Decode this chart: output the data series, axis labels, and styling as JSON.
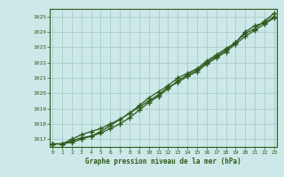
{
  "x": [
    0,
    1,
    2,
    3,
    4,
    5,
    6,
    7,
    8,
    9,
    10,
    11,
    12,
    13,
    14,
    15,
    16,
    17,
    18,
    19,
    20,
    21,
    22,
    23
  ],
  "line1": [
    1016.7,
    1016.7,
    1016.9,
    1017.1,
    1017.2,
    1017.4,
    1017.7,
    1018.0,
    1018.4,
    1018.9,
    1019.4,
    1019.8,
    1020.3,
    1020.8,
    1021.2,
    1021.5,
    1022.0,
    1022.4,
    1022.8,
    1023.3,
    1023.9,
    1024.2,
    1024.7,
    1025.2
  ],
  "line2": [
    1016.7,
    1016.7,
    1016.8,
    1017.0,
    1017.2,
    1017.5,
    1017.9,
    1018.3,
    1018.7,
    1019.1,
    1019.5,
    1019.9,
    1020.4,
    1020.7,
    1021.1,
    1021.4,
    1021.9,
    1022.3,
    1022.7,
    1023.2,
    1023.7,
    1024.1,
    1024.5,
    1024.9
  ],
  "line3": [
    1016.7,
    1016.7,
    1017.0,
    1017.3,
    1017.5,
    1017.7,
    1018.0,
    1018.3,
    1018.7,
    1019.2,
    1019.7,
    1020.1,
    1020.5,
    1021.0,
    1021.3,
    1021.6,
    1022.1,
    1022.5,
    1022.9,
    1023.3,
    1024.0,
    1024.4,
    1024.6,
    1025.0
  ],
  "line_color": "#2d5a1b",
  "bg_color": "#cce8e8",
  "grid_color": "#aacccc",
  "title": "Graphe pression niveau de la mer (hPa)",
  "ylim": [
    1016.5,
    1025.5
  ],
  "yticks": [
    1017,
    1018,
    1019,
    1020,
    1021,
    1022,
    1023,
    1024,
    1025
  ],
  "xticks": [
    0,
    1,
    2,
    3,
    4,
    5,
    6,
    7,
    8,
    9,
    10,
    11,
    12,
    13,
    14,
    15,
    16,
    17,
    18,
    19,
    20,
    21,
    22,
    23
  ]
}
